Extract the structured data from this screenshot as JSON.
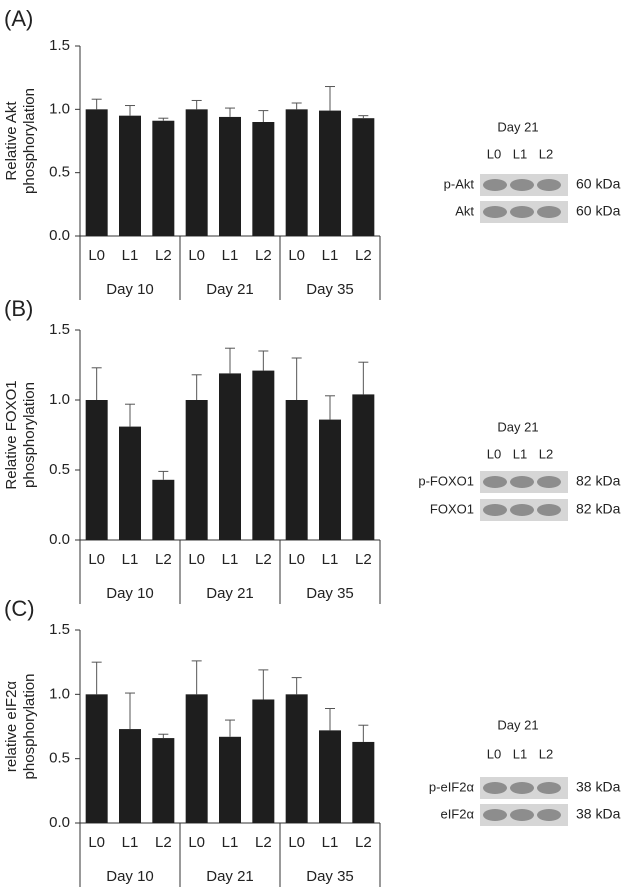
{
  "chart_data": [
    {
      "type": "bar",
      "panel_label": "(A)",
      "ylabel": [
        "Relative Akt",
        "phosphorylation"
      ],
      "categories": [
        "L0",
        "L1",
        "L2",
        "L0",
        "L1",
        "L2",
        "L0",
        "L1",
        "L2"
      ],
      "groups": [
        "Day 10",
        "Day 21",
        "Day 35"
      ],
      "values": [
        1.0,
        0.95,
        0.91,
        1.0,
        0.94,
        0.9,
        1.0,
        0.99,
        0.93
      ],
      "errors": [
        0.08,
        0.08,
        0.02,
        0.07,
        0.07,
        0.09,
        0.05,
        0.19,
        0.02
      ],
      "color": "#1e1e1e",
      "ylim": [
        0,
        1.5
      ],
      "yticks": [
        {
          "value": 0,
          "label": "0.0"
        },
        {
          "value": 0.5,
          "label": "0.5"
        },
        {
          "value": 1,
          "label": "1.0"
        },
        {
          "value": 1.5,
          "label": "1.5"
        }
      ],
      "blot": {
        "title": "Day 21",
        "lanes": [
          "L0",
          "L1",
          "L2"
        ],
        "rows": [
          {
            "name": "p-Akt",
            "size": "60 kDa"
          },
          {
            "name": "Akt",
            "size": "60 kDa"
          }
        ]
      }
    },
    {
      "type": "bar",
      "panel_label": "(B)",
      "ylabel": [
        "Relative FOXO1",
        "phosphorylation"
      ],
      "categories": [
        "L0",
        "L1",
        "L2",
        "L0",
        "L1",
        "L2",
        "L0",
        "L1",
        "L2"
      ],
      "groups": [
        "Day 10",
        "Day 21",
        "Day 35"
      ],
      "values": [
        1.0,
        0.81,
        0.43,
        1.0,
        1.19,
        1.21,
        1.0,
        0.86,
        1.04
      ],
      "errors": [
        0.23,
        0.16,
        0.06,
        0.18,
        0.18,
        0.14,
        0.3,
        0.17,
        0.23
      ],
      "color": "#1e1e1e",
      "ylim": [
        0,
        1.5
      ],
      "yticks": [
        {
          "value": 0,
          "label": "0.0"
        },
        {
          "value": 0.5,
          "label": "0.5"
        },
        {
          "value": 1,
          "label": "1.0"
        },
        {
          "value": 1.5,
          "label": "1.5"
        }
      ],
      "blot": {
        "title": "Day 21",
        "lanes": [
          "L0",
          "L1",
          "L2"
        ],
        "rows": [
          {
            "name": "p-FOXO1",
            "size": "82 kDa"
          },
          {
            "name": "FOXO1",
            "size": "82 kDa"
          }
        ]
      }
    },
    {
      "type": "bar",
      "panel_label": "(C)",
      "ylabel": [
        "relative eIF2α",
        "phosphorylation"
      ],
      "categories": [
        "L0",
        "L1",
        "L2",
        "L0",
        "L1",
        "L2",
        "L0",
        "L1",
        "L2"
      ],
      "groups": [
        "Day 10",
        "Day 21",
        "Day 35"
      ],
      "values": [
        1.0,
        0.73,
        0.66,
        1.0,
        0.67,
        0.96,
        1.0,
        0.72,
        0.63
      ],
      "errors": [
        0.25,
        0.28,
        0.03,
        0.26,
        0.13,
        0.23,
        0.13,
        0.17,
        0.13
      ],
      "color": "#1e1e1e",
      "ylim": [
        0,
        1.5
      ],
      "yticks": [
        {
          "value": 0,
          "label": "0.0"
        },
        {
          "value": 0.5,
          "label": "0.5"
        },
        {
          "value": 1,
          "label": "1.0"
        },
        {
          "value": 1.5,
          "label": "1.5"
        }
      ],
      "blot": {
        "title": "Day 21",
        "lanes": [
          "L0",
          "L1",
          "L2"
        ],
        "rows": [
          {
            "name": "p-eIF2α",
            "size": "38 kDa"
          },
          {
            "name": "eIF2α",
            "size": "38 kDa"
          }
        ]
      }
    }
  ]
}
